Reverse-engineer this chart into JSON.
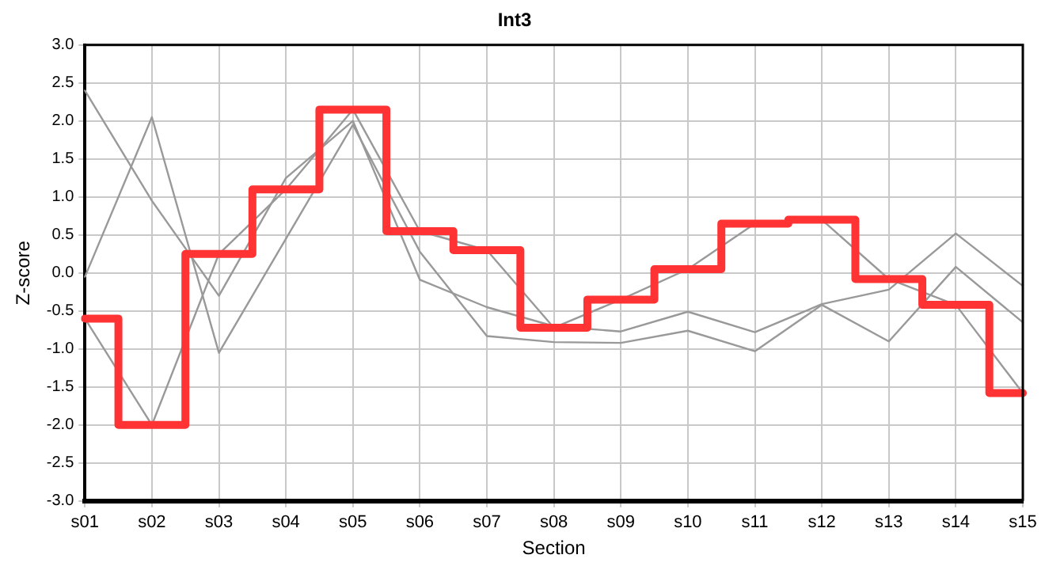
{
  "chart_data": {
    "type": "line",
    "title": "Int3",
    "xlabel": "Section",
    "ylabel": "Z-score",
    "categories": [
      "s01",
      "s02",
      "s03",
      "s04",
      "s05",
      "s06",
      "s07",
      "s08",
      "s09",
      "s10",
      "s11",
      "s12",
      "s13",
      "s14",
      "s15"
    ],
    "series": [
      {
        "color": "#999999",
        "values": [
          2.4,
          0.95,
          -0.3,
          1.25,
          2.0,
          -0.09,
          -0.45,
          -0.7,
          -0.77,
          -0.51,
          -0.78,
          -0.41,
          -0.22,
          0.52,
          -0.17
        ]
      },
      {
        "color": "#999999",
        "values": [
          -0.05,
          2.05,
          -1.05,
          0.45,
          1.95,
          0.28,
          -0.83,
          -0.91,
          -0.92,
          -0.76,
          -1.03,
          -0.42,
          -0.9,
          0.08,
          -0.65
        ]
      },
      {
        "color": "#999999",
        "values": [
          -0.6,
          -2.0,
          0.25,
          1.1,
          2.15,
          0.55,
          0.3,
          -0.72,
          -0.35,
          0.05,
          0.65,
          0.7,
          -0.08,
          -0.42,
          -1.58
        ]
      },
      {
        "type": "step",
        "color": "#ff3333",
        "values": [
          -0.6,
          -2.0,
          0.25,
          1.1,
          2.15,
          0.55,
          0.3,
          -0.72,
          -0.35,
          0.05,
          0.65,
          0.7,
          -0.08,
          -0.42,
          -1.58
        ]
      }
    ],
    "ylim": [
      -3,
      3
    ],
    "yticks": [
      {
        "value": -3,
        "label": "-3.0"
      },
      {
        "value": -2.5,
        "label": "-2.5"
      },
      {
        "value": -2,
        "label": "-2.0"
      },
      {
        "value": -1.5,
        "label": "-1.5"
      },
      {
        "value": -1,
        "label": "-1.0"
      },
      {
        "value": -0.5,
        "label": "-0.5"
      },
      {
        "value": 0,
        "label": "0.0"
      },
      {
        "value": 0.5,
        "label": "0.5"
      },
      {
        "value": 1,
        "label": "1.0"
      },
      {
        "value": 1.5,
        "label": "1.5"
      },
      {
        "value": 2,
        "label": "2.0"
      },
      {
        "value": 2.5,
        "label": "2.5"
      },
      {
        "value": 3,
        "label": "3.0"
      }
    ],
    "grid": true,
    "legend": false,
    "marker": "none"
  }
}
